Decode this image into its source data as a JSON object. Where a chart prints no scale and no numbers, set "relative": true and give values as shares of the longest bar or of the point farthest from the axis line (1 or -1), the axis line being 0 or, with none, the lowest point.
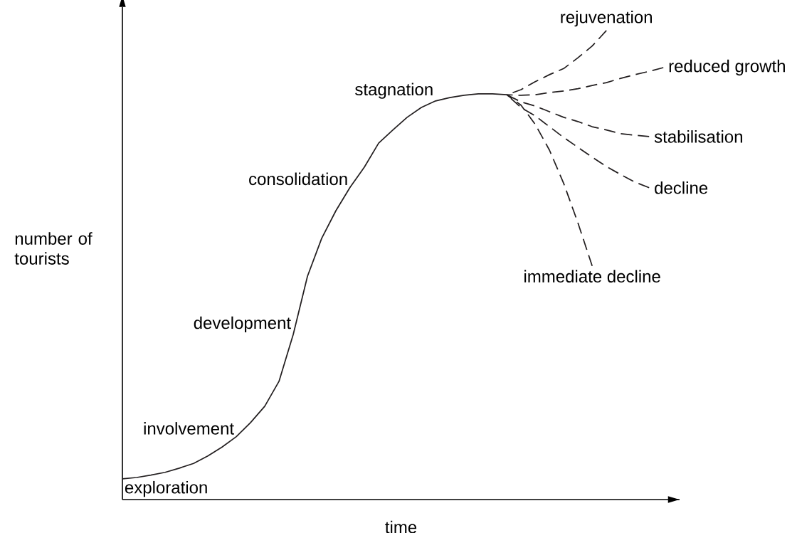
{
  "chart_data": {
    "type": "line",
    "relative": true,
    "xlabel": "time",
    "ylabel": "number of tourists",
    "categories": [
      null,
      null,
      null,
      null,
      null,
      null,
      null,
      null,
      null,
      null,
      null,
      null,
      null,
      null,
      null,
      null,
      null,
      null,
      null,
      null,
      null,
      null,
      null,
      null,
      null,
      null,
      null,
      null,
      null,
      null,
      null,
      null,
      null,
      null,
      null,
      null,
      null,
      null,
      null
    ],
    "series": [
      {
        "color": "#231f20",
        "line_style": "solid",
        "values": [
          0.044,
          0.047,
          0.052,
          0.058,
          0.067,
          0.077,
          0.093,
          0.112,
          0.134,
          0.164,
          0.199,
          0.252,
          0.352,
          0.476,
          0.557,
          0.616,
          0.666,
          0.709,
          0.76,
          0.788,
          0.815,
          0.836,
          0.85,
          0.857,
          0.862,
          0.865,
          0.865,
          0.863,
          null,
          null,
          null,
          null,
          null,
          null,
          null,
          null,
          null,
          null,
          null
        ]
      },
      {
        "name": "rejuvenation",
        "color": "#231f20",
        "line_style": "dashed",
        "values": [
          null,
          null,
          null,
          null,
          null,
          null,
          null,
          null,
          null,
          null,
          null,
          null,
          null,
          null,
          null,
          null,
          null,
          null,
          null,
          null,
          null,
          null,
          null,
          null,
          null,
          null,
          null,
          0.863,
          0.874,
          0.891,
          0.906,
          0.919,
          0.942,
          0.967,
          1.0,
          null,
          null,
          null,
          null
        ]
      },
      {
        "name": "reduced growth",
        "color": "#231f20",
        "line_style": "dashed",
        "values": [
          null,
          null,
          null,
          null,
          null,
          null,
          null,
          null,
          null,
          null,
          null,
          null,
          null,
          null,
          null,
          null,
          null,
          null,
          null,
          null,
          null,
          null,
          null,
          null,
          null,
          null,
          null,
          0.863,
          0.862,
          0.863,
          0.868,
          0.871,
          0.876,
          0.883,
          0.889,
          0.898,
          0.906,
          0.913,
          0.921
        ]
      },
      {
        "name": "stabilisation",
        "color": "#231f20",
        "line_style": "dashed",
        "values": [
          null,
          null,
          null,
          null,
          null,
          null,
          null,
          null,
          null,
          null,
          null,
          null,
          null,
          null,
          null,
          null,
          null,
          null,
          null,
          null,
          null,
          null,
          null,
          null,
          null,
          null,
          null,
          0.863,
          0.848,
          0.839,
          0.827,
          0.815,
          0.806,
          0.795,
          0.788,
          0.78,
          0.777,
          0.774,
          null
        ]
      },
      {
        "name": "decline",
        "color": "#231f20",
        "line_style": "dashed",
        "values": [
          null,
          null,
          null,
          null,
          null,
          null,
          null,
          null,
          null,
          null,
          null,
          null,
          null,
          null,
          null,
          null,
          null,
          null,
          null,
          null,
          null,
          null,
          null,
          null,
          null,
          null,
          null,
          0.863,
          0.836,
          0.818,
          0.795,
          0.772,
          0.751,
          0.73,
          0.71,
          0.693,
          0.677,
          0.665,
          null
        ]
      },
      {
        "name": "immediate decline",
        "color": "#231f20",
        "line_style": "dashed",
        "values": [
          null,
          null,
          null,
          null,
          null,
          null,
          null,
          null,
          null,
          null,
          null,
          null,
          null,
          null,
          null,
          null,
          null,
          null,
          null,
          null,
          null,
          null,
          null,
          null,
          null,
          null,
          null,
          0.863,
          0.841,
          0.8,
          0.745,
          0.674,
          0.59,
          0.498,
          null,
          null,
          null,
          null,
          null
        ]
      }
    ],
    "annotations": [
      "exploration",
      "involvement",
      "development",
      "consolidation",
      "stagnation"
    ]
  }
}
